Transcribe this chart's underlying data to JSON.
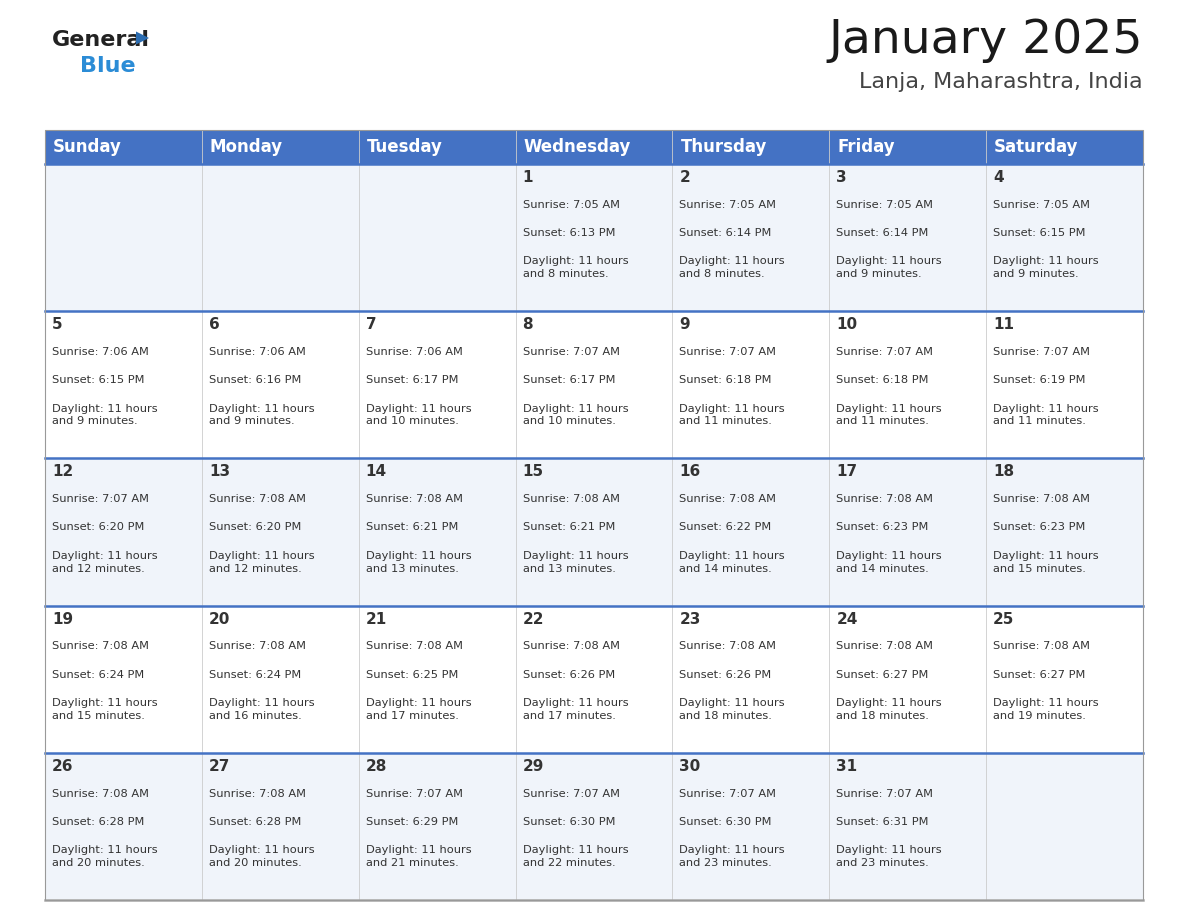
{
  "title": "January 2025",
  "subtitle": "Lanja, Maharashtra, India",
  "header_bg": "#4472C4",
  "header_text_color": "#FFFFFF",
  "day_names": [
    "Sunday",
    "Monday",
    "Tuesday",
    "Wednesday",
    "Thursday",
    "Friday",
    "Saturday"
  ],
  "header_font_size": 12,
  "title_font_size": 34,
  "subtitle_font_size": 16,
  "cell_number_font_size": 11,
  "cell_text_font_size": 8.2,
  "background_color": "#FFFFFF",
  "cell_bg_even": "#F0F4FA",
  "cell_bg_odd": "#FFFFFF",
  "divider_color": "#4472C4",
  "text_color": "#333333",
  "logo_general_color": "#222222",
  "logo_blue_color": "#2B8CD6",
  "logo_triangle_color": "#2B6CB0",
  "days": [
    {
      "day": 1,
      "col": 3,
      "row": 0,
      "sunrise": "7:05 AM",
      "sunset": "6:13 PM",
      "daylight_hours": 11,
      "daylight_minutes": 8
    },
    {
      "day": 2,
      "col": 4,
      "row": 0,
      "sunrise": "7:05 AM",
      "sunset": "6:14 PM",
      "daylight_hours": 11,
      "daylight_minutes": 8
    },
    {
      "day": 3,
      "col": 5,
      "row": 0,
      "sunrise": "7:05 AM",
      "sunset": "6:14 PM",
      "daylight_hours": 11,
      "daylight_minutes": 9
    },
    {
      "day": 4,
      "col": 6,
      "row": 0,
      "sunrise": "7:05 AM",
      "sunset": "6:15 PM",
      "daylight_hours": 11,
      "daylight_minutes": 9
    },
    {
      "day": 5,
      "col": 0,
      "row": 1,
      "sunrise": "7:06 AM",
      "sunset": "6:15 PM",
      "daylight_hours": 11,
      "daylight_minutes": 9
    },
    {
      "day": 6,
      "col": 1,
      "row": 1,
      "sunrise": "7:06 AM",
      "sunset": "6:16 PM",
      "daylight_hours": 11,
      "daylight_minutes": 9
    },
    {
      "day": 7,
      "col": 2,
      "row": 1,
      "sunrise": "7:06 AM",
      "sunset": "6:17 PM",
      "daylight_hours": 11,
      "daylight_minutes": 10
    },
    {
      "day": 8,
      "col": 3,
      "row": 1,
      "sunrise": "7:07 AM",
      "sunset": "6:17 PM",
      "daylight_hours": 11,
      "daylight_minutes": 10
    },
    {
      "day": 9,
      "col": 4,
      "row": 1,
      "sunrise": "7:07 AM",
      "sunset": "6:18 PM",
      "daylight_hours": 11,
      "daylight_minutes": 11
    },
    {
      "day": 10,
      "col": 5,
      "row": 1,
      "sunrise": "7:07 AM",
      "sunset": "6:18 PM",
      "daylight_hours": 11,
      "daylight_minutes": 11
    },
    {
      "day": 11,
      "col": 6,
      "row": 1,
      "sunrise": "7:07 AM",
      "sunset": "6:19 PM",
      "daylight_hours": 11,
      "daylight_minutes": 11
    },
    {
      "day": 12,
      "col": 0,
      "row": 2,
      "sunrise": "7:07 AM",
      "sunset": "6:20 PM",
      "daylight_hours": 11,
      "daylight_minutes": 12
    },
    {
      "day": 13,
      "col": 1,
      "row": 2,
      "sunrise": "7:08 AM",
      "sunset": "6:20 PM",
      "daylight_hours": 11,
      "daylight_minutes": 12
    },
    {
      "day": 14,
      "col": 2,
      "row": 2,
      "sunrise": "7:08 AM",
      "sunset": "6:21 PM",
      "daylight_hours": 11,
      "daylight_minutes": 13
    },
    {
      "day": 15,
      "col": 3,
      "row": 2,
      "sunrise": "7:08 AM",
      "sunset": "6:21 PM",
      "daylight_hours": 11,
      "daylight_minutes": 13
    },
    {
      "day": 16,
      "col": 4,
      "row": 2,
      "sunrise": "7:08 AM",
      "sunset": "6:22 PM",
      "daylight_hours": 11,
      "daylight_minutes": 14
    },
    {
      "day": 17,
      "col": 5,
      "row": 2,
      "sunrise": "7:08 AM",
      "sunset": "6:23 PM",
      "daylight_hours": 11,
      "daylight_minutes": 14
    },
    {
      "day": 18,
      "col": 6,
      "row": 2,
      "sunrise": "7:08 AM",
      "sunset": "6:23 PM",
      "daylight_hours": 11,
      "daylight_minutes": 15
    },
    {
      "day": 19,
      "col": 0,
      "row": 3,
      "sunrise": "7:08 AM",
      "sunset": "6:24 PM",
      "daylight_hours": 11,
      "daylight_minutes": 15
    },
    {
      "day": 20,
      "col": 1,
      "row": 3,
      "sunrise": "7:08 AM",
      "sunset": "6:24 PM",
      "daylight_hours": 11,
      "daylight_minutes": 16
    },
    {
      "day": 21,
      "col": 2,
      "row": 3,
      "sunrise": "7:08 AM",
      "sunset": "6:25 PM",
      "daylight_hours": 11,
      "daylight_minutes": 17
    },
    {
      "day": 22,
      "col": 3,
      "row": 3,
      "sunrise": "7:08 AM",
      "sunset": "6:26 PM",
      "daylight_hours": 11,
      "daylight_minutes": 17
    },
    {
      "day": 23,
      "col": 4,
      "row": 3,
      "sunrise": "7:08 AM",
      "sunset": "6:26 PM",
      "daylight_hours": 11,
      "daylight_minutes": 18
    },
    {
      "day": 24,
      "col": 5,
      "row": 3,
      "sunrise": "7:08 AM",
      "sunset": "6:27 PM",
      "daylight_hours": 11,
      "daylight_minutes": 18
    },
    {
      "day": 25,
      "col": 6,
      "row": 3,
      "sunrise": "7:08 AM",
      "sunset": "6:27 PM",
      "daylight_hours": 11,
      "daylight_minutes": 19
    },
    {
      "day": 26,
      "col": 0,
      "row": 4,
      "sunrise": "7:08 AM",
      "sunset": "6:28 PM",
      "daylight_hours": 11,
      "daylight_minutes": 20
    },
    {
      "day": 27,
      "col": 1,
      "row": 4,
      "sunrise": "7:08 AM",
      "sunset": "6:28 PM",
      "daylight_hours": 11,
      "daylight_minutes": 20
    },
    {
      "day": 28,
      "col": 2,
      "row": 4,
      "sunrise": "7:07 AM",
      "sunset": "6:29 PM",
      "daylight_hours": 11,
      "daylight_minutes": 21
    },
    {
      "day": 29,
      "col": 3,
      "row": 4,
      "sunrise": "7:07 AM",
      "sunset": "6:30 PM",
      "daylight_hours": 11,
      "daylight_minutes": 22
    },
    {
      "day": 30,
      "col": 4,
      "row": 4,
      "sunrise": "7:07 AM",
      "sunset": "6:30 PM",
      "daylight_hours": 11,
      "daylight_minutes": 23
    },
    {
      "day": 31,
      "col": 5,
      "row": 4,
      "sunrise": "7:07 AM",
      "sunset": "6:31 PM",
      "daylight_hours": 11,
      "daylight_minutes": 23
    }
  ]
}
